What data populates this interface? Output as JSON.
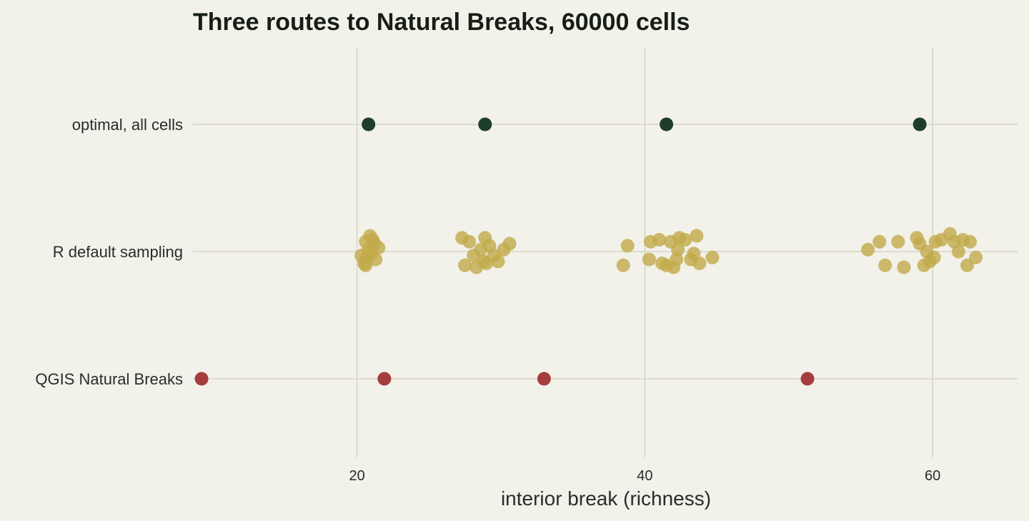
{
  "chart_data": {
    "type": "scatter",
    "title": "Three routes to Natural Breaks, 60000 cells",
    "xlabel": "interior break (richness)",
    "ylabel": "",
    "xlim": [
      8.6,
      65.9
    ],
    "xticks": [
      20,
      40,
      60
    ],
    "xtick_labels": [
      "20",
      "40",
      "60"
    ],
    "categories": [
      "optimal, all cells",
      "R default sampling",
      "QGIS Natural Breaks"
    ],
    "grid": true,
    "legend": "none",
    "series": [
      {
        "category": "optimal, all cells",
        "color": "#1f3d2b",
        "opacity": 1,
        "points": [
          {
            "x": 20.8,
            "jitter": 0
          },
          {
            "x": 28.9,
            "jitter": 0
          },
          {
            "x": 41.5,
            "jitter": 0
          },
          {
            "x": 59.1,
            "jitter": 0
          }
        ]
      },
      {
        "category": "R default sampling",
        "color": "#c2aa4a",
        "opacity": 0.8,
        "points": [
          {
            "x": 20.5,
            "jitter": -0.3
          },
          {
            "x": 20.6,
            "jitter": 0.25
          },
          {
            "x": 20.7,
            "jitter": -0.15
          },
          {
            "x": 20.8,
            "jitter": 0.05
          },
          {
            "x": 20.9,
            "jitter": 0.4
          },
          {
            "x": 21.0,
            "jitter": -0.05
          },
          {
            "x": 21.1,
            "jitter": 0.3
          },
          {
            "x": 21.3,
            "jitter": -0.2
          },
          {
            "x": 21.5,
            "jitter": 0.1
          },
          {
            "x": 20.3,
            "jitter": -0.1
          },
          {
            "x": 20.6,
            "jitter": -0.35
          },
          {
            "x": 21.2,
            "jitter": 0.2
          },
          {
            "x": 27.3,
            "jitter": 0.35
          },
          {
            "x": 27.5,
            "jitter": -0.35
          },
          {
            "x": 27.8,
            "jitter": 0.25
          },
          {
            "x": 28.1,
            "jitter": -0.1
          },
          {
            "x": 28.3,
            "jitter": -0.4
          },
          {
            "x": 28.6,
            "jitter": 0.05
          },
          {
            "x": 28.9,
            "jitter": 0.35
          },
          {
            "x": 29.0,
            "jitter": -0.3
          },
          {
            "x": 29.2,
            "jitter": 0.15
          },
          {
            "x": 29.5,
            "jitter": -0.1
          },
          {
            "x": 29.8,
            "jitter": -0.25
          },
          {
            "x": 30.2,
            "jitter": 0.05
          },
          {
            "x": 30.6,
            "jitter": 0.2
          },
          {
            "x": 28.8,
            "jitter": -0.25
          },
          {
            "x": 38.5,
            "jitter": -0.35
          },
          {
            "x": 38.8,
            "jitter": 0.15
          },
          {
            "x": 40.3,
            "jitter": -0.2
          },
          {
            "x": 40.4,
            "jitter": 0.25
          },
          {
            "x": 41.0,
            "jitter": 0.3
          },
          {
            "x": 41.2,
            "jitter": -0.3
          },
          {
            "x": 41.8,
            "jitter": 0.25
          },
          {
            "x": 42.0,
            "jitter": -0.4
          },
          {
            "x": 42.2,
            "jitter": -0.2
          },
          {
            "x": 42.3,
            "jitter": 0.05
          },
          {
            "x": 42.4,
            "jitter": 0.35
          },
          {
            "x": 42.8,
            "jitter": 0.3
          },
          {
            "x": 43.2,
            "jitter": -0.2
          },
          {
            "x": 43.4,
            "jitter": -0.05
          },
          {
            "x": 43.6,
            "jitter": 0.4
          },
          {
            "x": 43.8,
            "jitter": -0.3
          },
          {
            "x": 44.7,
            "jitter": -0.15
          },
          {
            "x": 41.5,
            "jitter": -0.35
          },
          {
            "x": 55.5,
            "jitter": 0.05
          },
          {
            "x": 56.3,
            "jitter": 0.25
          },
          {
            "x": 56.7,
            "jitter": -0.35
          },
          {
            "x": 57.6,
            "jitter": 0.25
          },
          {
            "x": 58.0,
            "jitter": -0.4
          },
          {
            "x": 58.9,
            "jitter": 0.35
          },
          {
            "x": 59.1,
            "jitter": 0.2
          },
          {
            "x": 59.4,
            "jitter": -0.35
          },
          {
            "x": 59.6,
            "jitter": 0.0
          },
          {
            "x": 59.8,
            "jitter": -0.25
          },
          {
            "x": 60.1,
            "jitter": -0.15
          },
          {
            "x": 60.2,
            "jitter": 0.25
          },
          {
            "x": 60.6,
            "jitter": 0.3
          },
          {
            "x": 61.2,
            "jitter": 0.45
          },
          {
            "x": 61.5,
            "jitter": 0.25
          },
          {
            "x": 61.8,
            "jitter": 0.0
          },
          {
            "x": 62.1,
            "jitter": 0.3
          },
          {
            "x": 62.4,
            "jitter": -0.35
          },
          {
            "x": 62.6,
            "jitter": 0.25
          },
          {
            "x": 63.0,
            "jitter": -0.15
          }
        ]
      },
      {
        "category": "QGIS Natural Breaks",
        "color": "#a63d3d",
        "opacity": 1,
        "points": [
          {
            "x": 9.2,
            "jitter": 0
          },
          {
            "x": 21.9,
            "jitter": 0
          },
          {
            "x": 33.0,
            "jitter": 0
          },
          {
            "x": 51.3,
            "jitter": 0
          }
        ]
      }
    ]
  }
}
